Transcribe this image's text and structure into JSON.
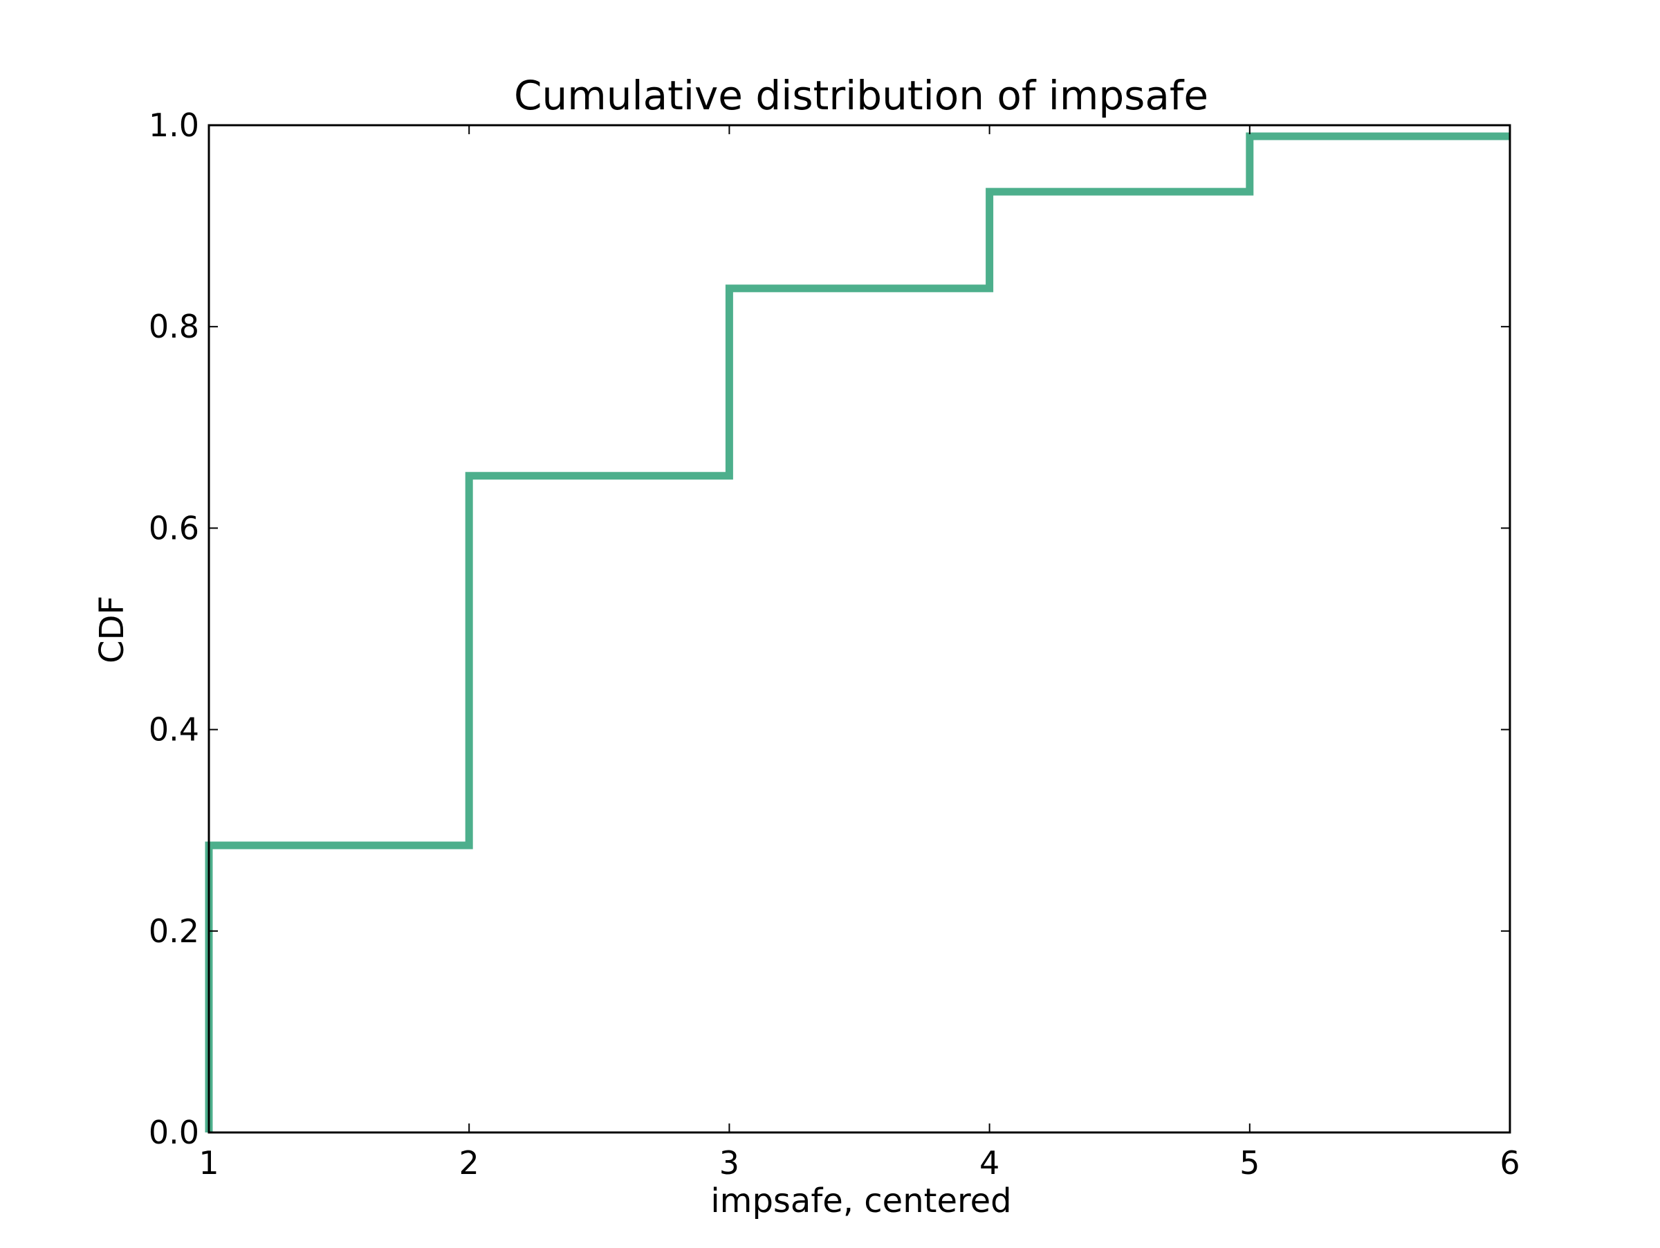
{
  "chart_data": {
    "type": "line",
    "drawstyle": "steps-post",
    "title": "Cumulative distribution of impsafe",
    "xlabel": "impsafe, centered",
    "ylabel": "CDF",
    "xlim": [
      1,
      6
    ],
    "ylim": [
      0.0,
      1.0
    ],
    "xticks": [
      1,
      2,
      3,
      4,
      5,
      6
    ],
    "xtick_labels": [
      "1",
      "2",
      "3",
      "4",
      "5",
      "6"
    ],
    "yticks": [
      0.0,
      0.2,
      0.4,
      0.6,
      0.8,
      1.0
    ],
    "ytick_labels": [
      "0.0",
      "0.2",
      "0.4",
      "0.6",
      "0.8",
      "1.0"
    ],
    "grid": false,
    "series": [
      {
        "color": "#4daf8c",
        "x": [
          1,
          1,
          2,
          2,
          3,
          3,
          4,
          4,
          5,
          5,
          6
        ],
        "y": [
          0.0,
          0.285,
          0.285,
          0.652,
          0.652,
          0.838,
          0.838,
          0.934,
          0.934,
          0.989,
          0.989
        ]
      }
    ]
  }
}
